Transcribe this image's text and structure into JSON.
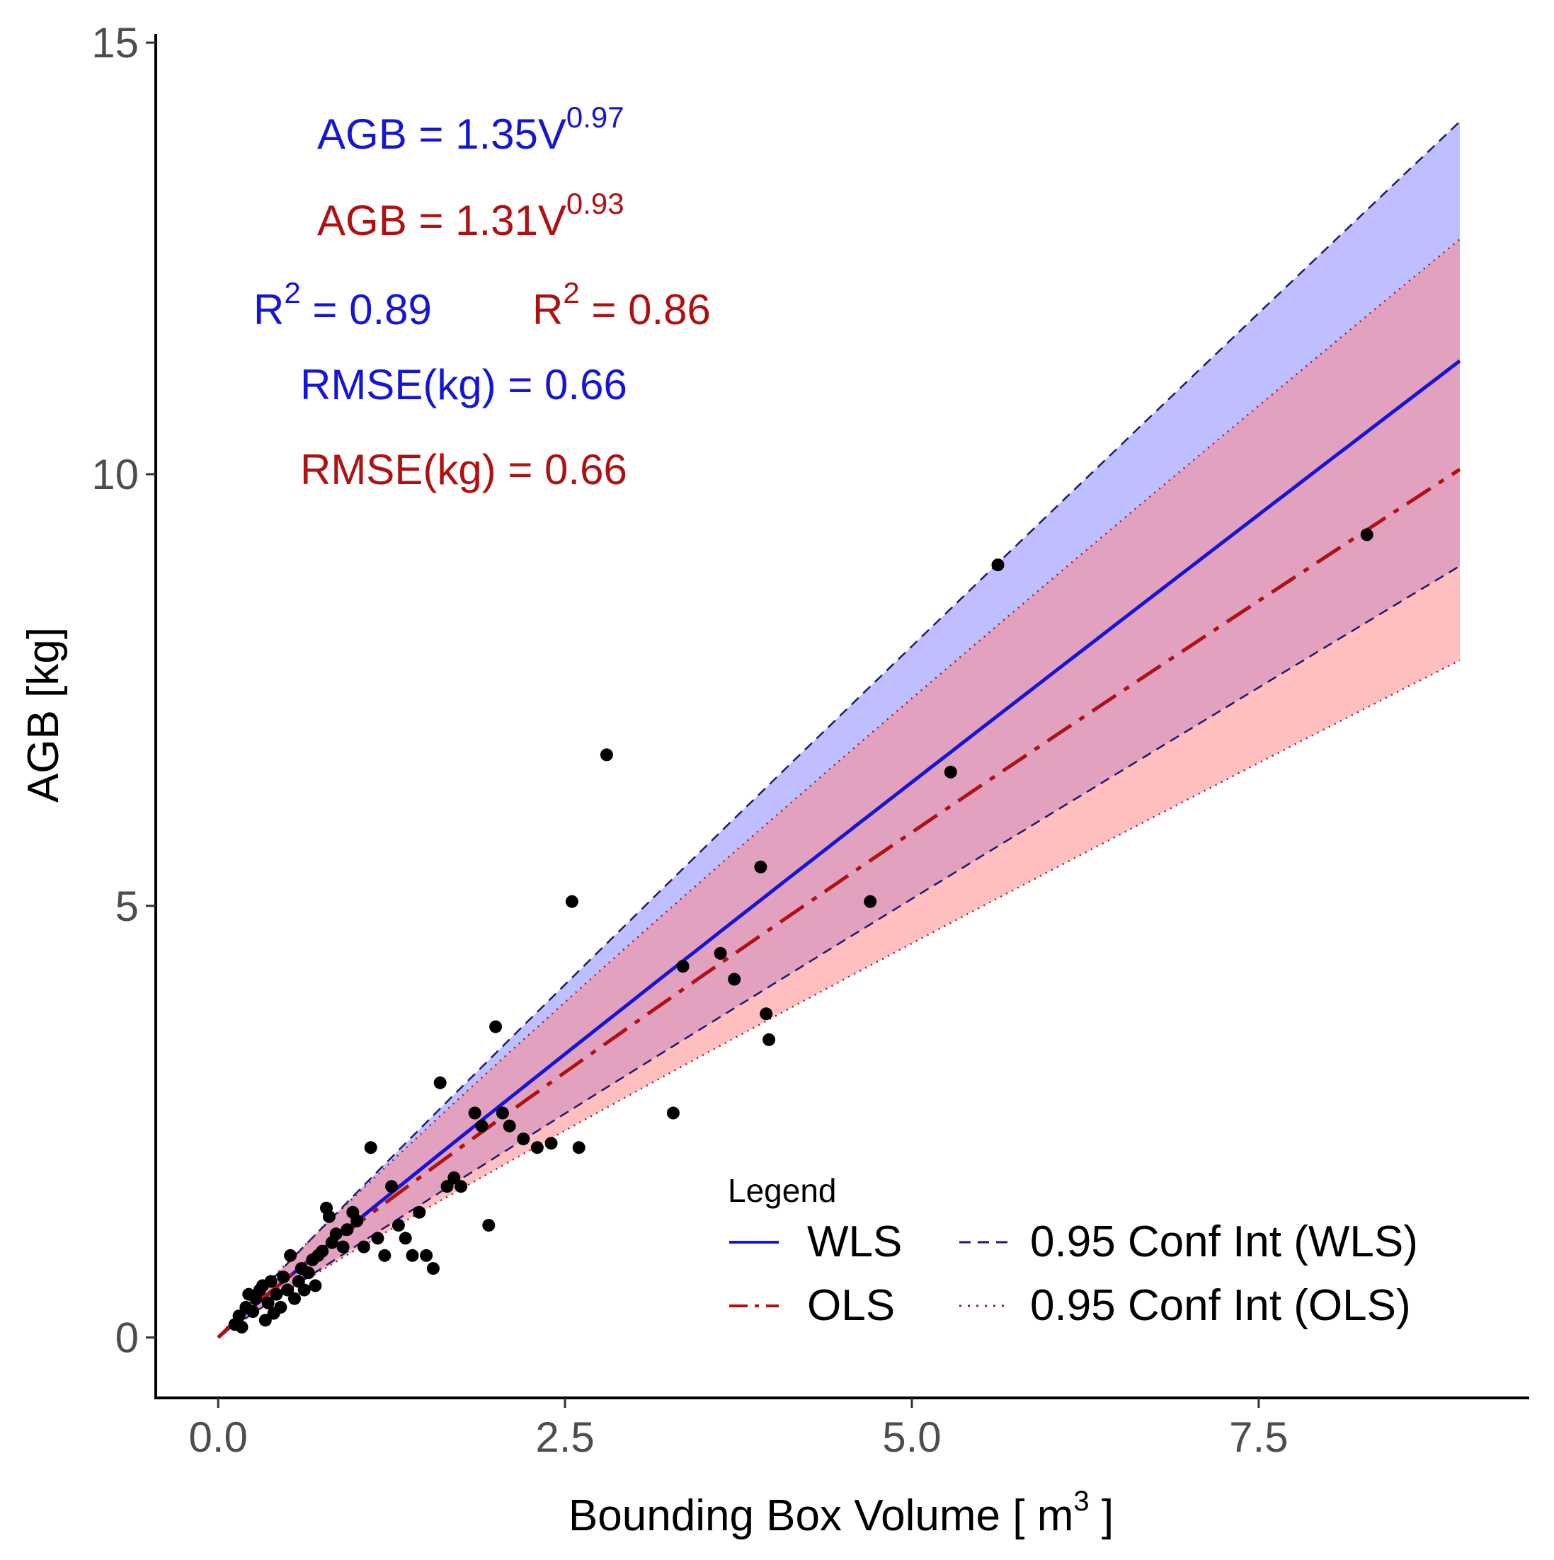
{
  "chart_data": {
    "type": "scatter",
    "title": "",
    "xlabel": "Bounding Box Volume [ m",
    "xlabel_sup": "3",
    "xlabel_end": " ]",
    "ylabel": "AGB [kg]",
    "xlim": [
      -0.45,
      9.45
    ],
    "ylim": [
      -0.7,
      15.1
    ],
    "x_ticks": [
      0.0,
      2.5,
      5.0,
      7.5
    ],
    "x_tick_labels": [
      "0.0",
      "2.5",
      "5.0",
      "7.5"
    ],
    "y_ticks": [
      0,
      5,
      10,
      15
    ],
    "y_tick_labels": [
      "0",
      "5",
      "10",
      "15"
    ],
    "grid": false,
    "colors": {
      "wls": "#1515d5",
      "ols": "#b01010",
      "wls_band": "#8a8aff",
      "ols_band": "#ff8a8a",
      "points": "#000000"
    },
    "fits": {
      "wls": {
        "name": "WLS",
        "a": 1.35,
        "b": 0.97,
        "ci_upper_factor": 1.245,
        "ci_lower_factor": 0.79
      },
      "ols": {
        "name": "OLS",
        "a": 1.31,
        "b": 0.93,
        "ci_upper_factor": 1.265,
        "ci_lower_factor": 0.78
      }
    },
    "fit_x_range": [
      0.0,
      8.95
    ],
    "annotations": [
      {
        "id": "wls-eq",
        "color": "wls",
        "parts": [
          {
            "t": "AGB = 1.35V"
          },
          {
            "t": "0.97",
            "sup": true
          }
        ]
      },
      {
        "id": "ols-eq",
        "color": "ols",
        "parts": [
          {
            "t": "AGB = 1.31V"
          },
          {
            "t": "0.93",
            "sup": true
          }
        ]
      },
      {
        "id": "wls-r2",
        "color": "wls",
        "parts": [
          {
            "t": "R"
          },
          {
            "t": "2",
            "sup": true
          },
          {
            "t": " = 0.89"
          }
        ]
      },
      {
        "id": "ols-r2",
        "color": "ols",
        "parts": [
          {
            "t": "R"
          },
          {
            "t": "2",
            "sup": true
          },
          {
            "t": " = 0.86"
          }
        ]
      },
      {
        "id": "wls-rmse",
        "color": "wls",
        "parts": [
          {
            "t": "RMSE(kg) = 0.66"
          }
        ]
      },
      {
        "id": "ols-rmse",
        "color": "ols",
        "parts": [
          {
            "t": "RMSE(kg) = 0.66"
          }
        ]
      }
    ],
    "legend": {
      "title": "Legend",
      "position": "bottom-right",
      "entries": [
        {
          "label": "WLS",
          "style": "solid",
          "color": "wls"
        },
        {
          "label": "0.95 Conf Int (WLS)",
          "style": "dashed",
          "color": "wls"
        },
        {
          "label": "OLS",
          "style": "dashdot",
          "color": "ols"
        },
        {
          "label": "0.95 Conf Int (OLS)",
          "style": "dotted",
          "color": "ols"
        }
      ]
    },
    "points": [
      [
        0.12,
        0.15
      ],
      [
        0.15,
        0.25
      ],
      [
        0.17,
        0.12
      ],
      [
        0.2,
        0.35
      ],
      [
        0.22,
        0.5
      ],
      [
        0.25,
        0.3
      ],
      [
        0.27,
        0.45
      ],
      [
        0.3,
        0.55
      ],
      [
        0.32,
        0.6
      ],
      [
        0.34,
        0.2
      ],
      [
        0.36,
        0.4
      ],
      [
        0.38,
        0.65
      ],
      [
        0.4,
        0.28
      ],
      [
        0.42,
        0.5
      ],
      [
        0.45,
        0.35
      ],
      [
        0.47,
        0.7
      ],
      [
        0.5,
        0.55
      ],
      [
        0.52,
        0.95
      ],
      [
        0.55,
        0.45
      ],
      [
        0.58,
        0.65
      ],
      [
        0.6,
        0.8
      ],
      [
        0.62,
        0.55
      ],
      [
        0.65,
        0.75
      ],
      [
        0.68,
        0.9
      ],
      [
        0.7,
        0.6
      ],
      [
        0.72,
        0.95
      ],
      [
        0.75,
        1.0
      ],
      [
        0.78,
        1.5
      ],
      [
        0.8,
        1.4
      ],
      [
        0.82,
        1.1
      ],
      [
        0.85,
        1.2
      ],
      [
        0.9,
        1.05
      ],
      [
        0.93,
        1.25
      ],
      [
        0.97,
        1.45
      ],
      [
        1.0,
        1.35
      ],
      [
        1.05,
        1.05
      ],
      [
        1.1,
        2.2
      ],
      [
        1.15,
        1.15
      ],
      [
        1.2,
        0.95
      ],
      [
        1.25,
        1.75
      ],
      [
        1.3,
        1.3
      ],
      [
        1.35,
        1.15
      ],
      [
        1.4,
        0.95
      ],
      [
        1.45,
        1.45
      ],
      [
        1.5,
        0.95
      ],
      [
        1.55,
        0.8
      ],
      [
        1.6,
        2.95
      ],
      [
        1.65,
        1.75
      ],
      [
        1.7,
        1.85
      ],
      [
        1.75,
        1.75
      ],
      [
        1.85,
        2.6
      ],
      [
        1.9,
        2.45
      ],
      [
        1.95,
        1.3
      ],
      [
        2.0,
        3.6
      ],
      [
        2.05,
        2.6
      ],
      [
        2.1,
        2.45
      ],
      [
        2.2,
        2.3
      ],
      [
        2.3,
        2.2
      ],
      [
        2.4,
        2.25
      ],
      [
        2.55,
        5.05
      ],
      [
        2.6,
        2.2
      ],
      [
        2.8,
        6.75
      ],
      [
        3.28,
        2.6
      ],
      [
        3.35,
        4.3
      ],
      [
        3.62,
        4.45
      ],
      [
        3.72,
        4.15
      ],
      [
        3.91,
        5.45
      ],
      [
        3.95,
        3.75
      ],
      [
        3.97,
        3.45
      ],
      [
        4.7,
        5.05
      ],
      [
        5.28,
        6.55
      ],
      [
        5.62,
        8.95
      ],
      [
        8.28,
        9.3
      ]
    ]
  }
}
